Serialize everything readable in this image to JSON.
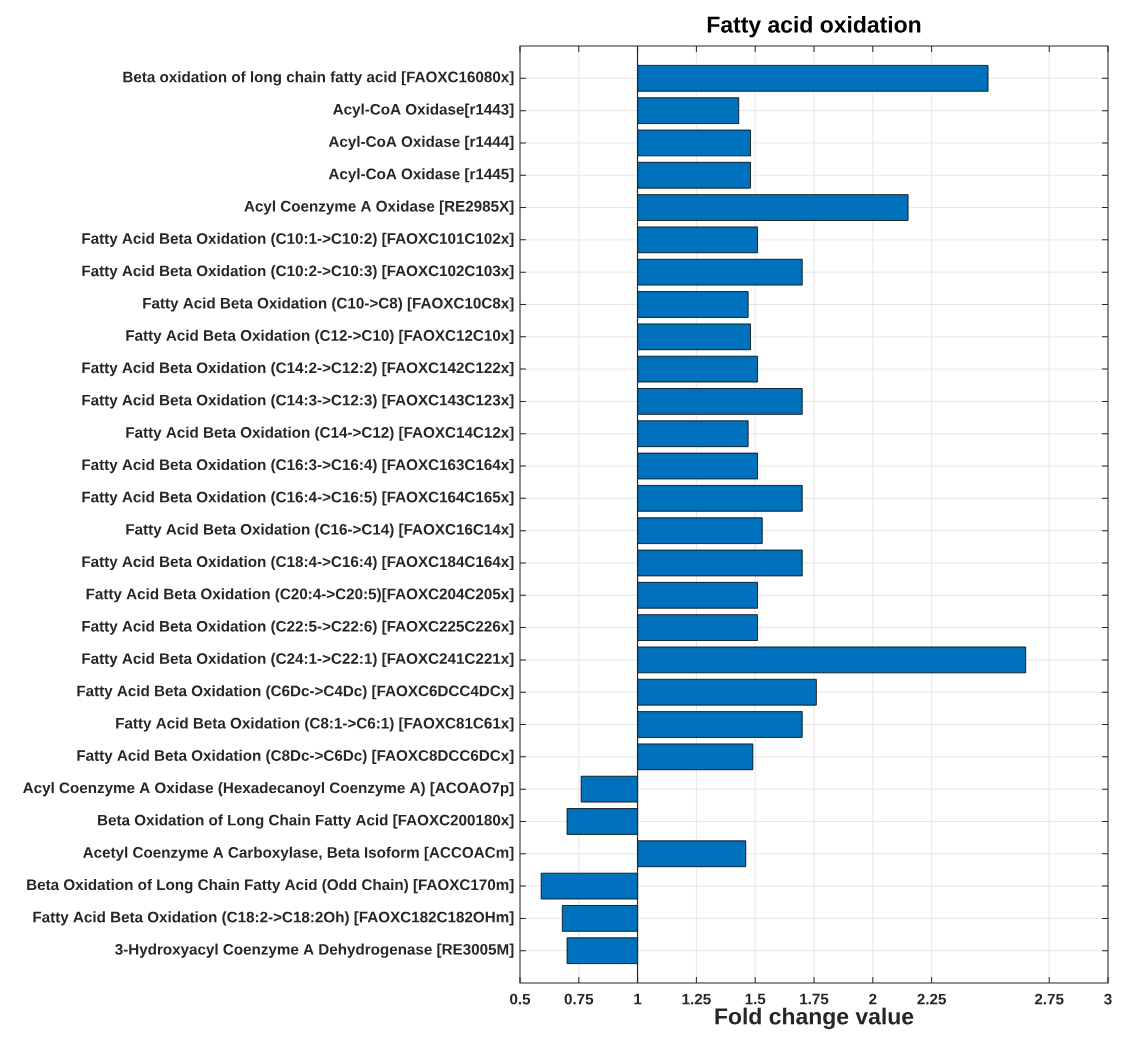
{
  "chart_data": {
    "type": "bar",
    "orientation": "horizontal",
    "title": "Fatty acid oxidation",
    "xlabel": "Fold change value",
    "categories": [
      "Beta oxidation of long chain fatty acid [FAOXC16080x]",
      "Acyl-CoA Oxidase[r1443]",
      "Acyl-CoA Oxidase [r1444]",
      "Acyl-CoA Oxidase [r1445]",
      "Acyl Coenzyme A Oxidase [RE2985X]",
      "Fatty Acid Beta Oxidation (C10:1->C10:2) [FAOXC101C102x]",
      "Fatty Acid Beta Oxidation (C10:2->C10:3) [FAOXC102C103x]",
      "Fatty Acid Beta Oxidation (C10->C8) [FAOXC10C8x]",
      "Fatty Acid Beta Oxidation (C12->C10) [FAOXC12C10x]",
      "Fatty Acid Beta Oxidation (C14:2->C12:2) [FAOXC142C122x]",
      "Fatty Acid Beta Oxidation (C14:3->C12:3) [FAOXC143C123x]",
      "Fatty Acid Beta Oxidation (C14->C12) [FAOXC14C12x]",
      "Fatty Acid Beta Oxidation (C16:3->C16:4) [FAOXC163C164x]",
      "Fatty Acid Beta Oxidation (C16:4->C16:5) [FAOXC164C165x]",
      "Fatty Acid Beta Oxidation (C16->C14) [FAOXC16C14x]",
      "Fatty Acid Beta Oxidation (C18:4->C16:4) [FAOXC184C164x]",
      "Fatty Acid Beta Oxidation (C20:4->C20:5)[FAOXC204C205x]",
      "Fatty Acid Beta Oxidation (C22:5->C22:6) [FAOXC225C226x]",
      "Fatty Acid Beta Oxidation (C24:1->C22:1) [FAOXC241C221x]",
      "Fatty Acid Beta Oxidation (C6Dc->C4Dc) [FAOXC6DCC4DCx]",
      "Fatty Acid Beta Oxidation (C8:1->C6:1) [FAOXC81C61x]",
      "Fatty Acid Beta Oxidation (C8Dc->C6Dc) [FAOXC8DCC6DCx]",
      "Acyl Coenzyme A Oxidase (Hexadecanoyl Coenzyme A) [ACOAO7p]",
      "Beta Oxidation of Long Chain Fatty Acid [FAOXC200180x]",
      "Acetyl Coenzyme A Carboxylase, Beta Isoform [ACCOACm]",
      "Beta Oxidation of Long Chain Fatty Acid (Odd Chain) [FAOXC170m]",
      "Fatty Acid Beta Oxidation (C18:2->C18:2Oh) [FAOXC182C182OHm]",
      "3-Hydroxyacyl Coenzyme A Dehydrogenase [RE3005M]"
    ],
    "base": [
      1,
      1,
      1,
      1,
      1,
      1,
      1,
      1,
      1,
      1,
      1,
      1,
      1,
      1,
      1,
      1,
      1,
      1,
      1,
      1,
      1,
      1,
      1,
      1,
      1,
      1,
      1,
      1
    ],
    "values": [
      1.49,
      0.43,
      0.48,
      0.48,
      1.15,
      0.51,
      0.7,
      0.47,
      0.48,
      0.51,
      0.7,
      0.47,
      0.51,
      0.7,
      0.53,
      0.7,
      0.51,
      0.51,
      1.65,
      0.76,
      0.7,
      0.49,
      -0.24,
      -0.3,
      0.46,
      -0.41,
      -0.32,
      -0.3
    ],
    "color": "#0072bd",
    "xlim": [
      0.5,
      3
    ],
    "xticks": [
      0.5,
      0.75,
      1,
      1.25,
      1.5,
      1.75,
      2,
      2.25,
      2.75,
      3
    ],
    "ref_lines": [
      {
        "axis": "x",
        "value": 1,
        "color": "#262626"
      }
    ],
    "grid": true
  }
}
